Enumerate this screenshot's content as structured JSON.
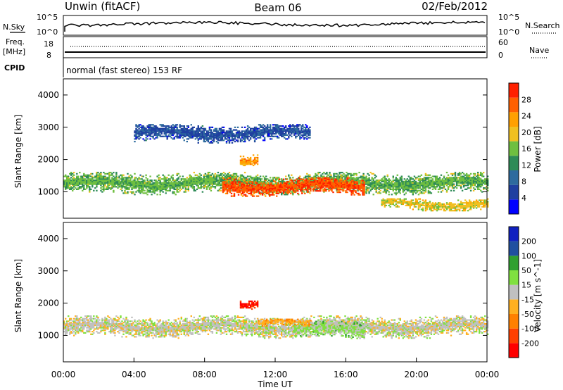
{
  "header": {
    "station": "Unwin (fitACF)",
    "beam": "Beam 06",
    "date": "02/Feb/2012"
  },
  "info_panel": {
    "nsky_label": "N.Sky",
    "nsearch_label": "N.Search",
    "noise_ticks": [
      "10^5",
      "10^0"
    ],
    "freq_label": "Freq.",
    "freq_unit": "[MHz]",
    "freq_ticks": [
      "18",
      "8"
    ],
    "nave_label": "Nave",
    "nave_ticks": [
      "60",
      "0"
    ],
    "cpid_label": "CPID",
    "cpid_text": "normal (fast stereo) 153 RF"
  },
  "colors": {
    "power_scale": [
      "#0000ff",
      "#2040a0",
      "#2e6b9e",
      "#2e8b57",
      "#6fbf40",
      "#f0c020",
      "#ffa000",
      "#ff6000",
      "#ff2000"
    ],
    "velocity_scale": [
      "#ff0000",
      "#ff4000",
      "#ff8000",
      "#ffb020",
      "#c0c0c0",
      "#80e040",
      "#30a030",
      "#2050a0",
      "#1020c0"
    ]
  },
  "chart_data": [
    {
      "type": "heatmap",
      "name": "power",
      "ylabel": "Slant Range [km]",
      "xlabel": "",
      "xlim": [
        "00:00",
        "24:00"
      ],
      "ylim": [
        180,
        4500
      ],
      "yticks": [
        "1000",
        "2000",
        "3000",
        "4000"
      ],
      "colorbar_label": "Power [dB]",
      "colorbar_ticks": [
        "4",
        "8",
        "12",
        "16",
        "20",
        "24",
        "28"
      ],
      "clim": [
        0,
        30
      ],
      "echo_bands": [
        {
          "t0": 0,
          "t1": 24,
          "r_center": 1250,
          "r_width": 350,
          "value": 14
        },
        {
          "t0": 9,
          "t1": 17,
          "r_center": 1150,
          "r_width": 300,
          "value": 26
        },
        {
          "t0": 10,
          "t1": 11,
          "r_center": 2000,
          "r_width": 200,
          "value": 22
        },
        {
          "t0": 4,
          "t1": 14,
          "r_center": 2800,
          "r_width": 300,
          "value": 6
        },
        {
          "t0": 18,
          "t1": 24,
          "r_center": 600,
          "r_width": 200,
          "value": 18
        }
      ]
    },
    {
      "type": "heatmap",
      "name": "velocity",
      "ylabel": "Slant Range [km]",
      "xlabel": "Time UT",
      "xticks": [
        "00:00",
        "04:00",
        "08:00",
        "12:00",
        "16:00",
        "20:00",
        "00:00"
      ],
      "ylim": [
        180,
        4500
      ],
      "yticks": [
        "1000",
        "2000",
        "3000",
        "4000"
      ],
      "colorbar_label": "Velocity [m s^-1]",
      "colorbar_ticks": [
        "200",
        "100",
        "50",
        "15",
        "-15",
        "-50",
        "-100",
        "-200"
      ],
      "clim": [
        -250,
        250
      ],
      "echo_bands": [
        {
          "t0": 0,
          "t1": 24,
          "r_center": 1250,
          "r_width": 350,
          "value": 0
        },
        {
          "t0": 13,
          "t1": 17,
          "r_center": 1150,
          "r_width": 300,
          "value": 40
        },
        {
          "t0": 10,
          "t1": 11,
          "r_center": 2000,
          "r_width": 200,
          "value": -220
        },
        {
          "t0": 11,
          "t1": 14,
          "r_center": 1350,
          "r_width": 150,
          "value": -60
        }
      ]
    }
  ]
}
